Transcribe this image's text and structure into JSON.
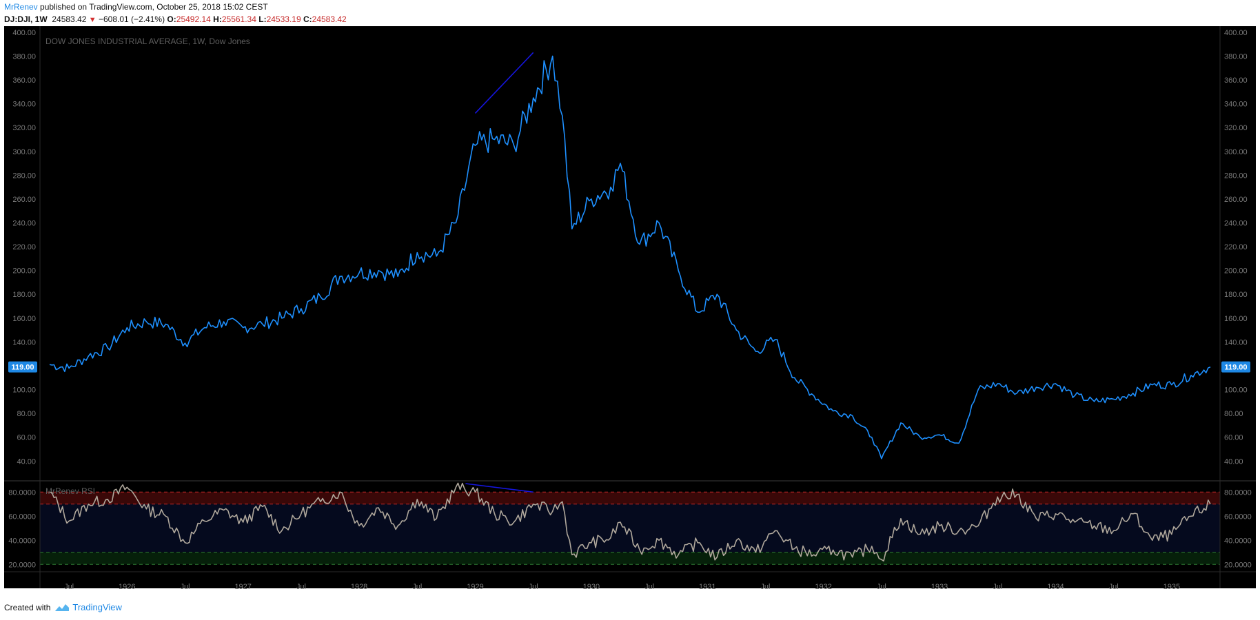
{
  "header": {
    "author": "MrRenev",
    "published_text": "published on TradingView.com, October 25, 2018 15:02 CEST",
    "symbol": "DJ:DJI, 1W",
    "last": "24583.42",
    "change": "−608.01 (−2.41%)",
    "o_label": "O:",
    "o_value": "25492.14",
    "h_label": "H:",
    "h_value": "25561.34",
    "l_label": "L:",
    "l_value": "24533.19",
    "c_label": "C:",
    "c_value": "24583.42"
  },
  "footer": {
    "created_with": "Created with",
    "brand": "TradingView"
  },
  "colors": {
    "price_line": "#1e90ff",
    "rsi_line": "#b0a89c",
    "overbought": "#c62828",
    "oversold": "#2e7d32",
    "background": "#000000",
    "divergence": "#1515e0"
  },
  "chart_data": [
    {
      "type": "line",
      "title": "DOW JONES INDUSTRIAL AVERAGE, 1W, Dow Jones",
      "series": [
        {
          "name": "",
          "x": [
            "1925-05",
            "1925-07",
            "1925-09",
            "1925-11",
            "1926-01",
            "1926-03",
            "1926-05",
            "1926-07",
            "1926-09",
            "1926-11",
            "1927-01",
            "1927-03",
            "1927-05",
            "1927-07",
            "1927-09",
            "1927-11",
            "1928-01",
            "1928-03",
            "1928-05",
            "1928-07",
            "1928-09",
            "1928-11",
            "1929-01",
            "1929-03",
            "1929-05",
            "1929-07",
            "1929-09",
            "1929-10",
            "1929-11",
            "1930-01",
            "1930-03",
            "1930-04",
            "1930-06",
            "1930-08",
            "1930-10",
            "1930-12",
            "1931-02",
            "1931-04",
            "1931-06",
            "1931-08",
            "1931-10",
            "1931-12",
            "1932-02",
            "1932-04",
            "1932-06",
            "1932-07",
            "1932-09",
            "1932-11",
            "1933-01",
            "1933-03",
            "1933-05",
            "1933-07",
            "1933-09",
            "1933-11",
            "1934-01",
            "1934-03",
            "1934-05",
            "1934-07",
            "1934-09",
            "1934-11",
            "1935-01",
            "1935-03",
            "1935-05"
          ],
          "y": [
            121,
            118,
            128,
            135,
            152,
            157,
            155,
            139,
            152,
            157,
            152,
            155,
            160,
            168,
            178,
            195,
            198,
            200,
            195,
            215,
            212,
            240,
            305,
            310,
            305,
            345,
            380,
            330,
            235,
            260,
            270,
            290,
            222,
            240,
            200,
            165,
            180,
            150,
            132,
            142,
            110,
            95,
            82,
            78,
            60,
            42,
            72,
            60,
            62,
            55,
            100,
            105,
            97,
            102,
            105,
            95,
            90,
            92,
            97,
            104,
            104,
            112,
            119
          ]
        }
      ],
      "yticks": [
        "400.00",
        "380.00",
        "360.00",
        "340.00",
        "320.00",
        "300.00",
        "280.00",
        "260.00",
        "240.00",
        "220.00",
        "200.00",
        "180.00",
        "160.00",
        "140.00",
        "120.00",
        "100.00",
        "80.00",
        "60.00",
        "40.00"
      ],
      "ylim": [
        28,
        404
      ],
      "last_value_label": "119.00",
      "grid": false
    },
    {
      "type": "line",
      "title": "MrRenev RSI",
      "series": [
        {
          "name": "",
          "x": [
            "1925-05",
            "1925-07",
            "1925-09",
            "1925-11",
            "1926-01",
            "1926-03",
            "1926-05",
            "1926-07",
            "1926-09",
            "1926-11",
            "1927-01",
            "1927-03",
            "1927-05",
            "1927-07",
            "1927-09",
            "1927-11",
            "1928-01",
            "1928-03",
            "1928-05",
            "1928-07",
            "1928-09",
            "1928-11",
            "1929-01",
            "1929-03",
            "1929-05",
            "1929-07",
            "1929-09",
            "1929-10",
            "1929-11",
            "1930-01",
            "1930-03",
            "1930-04",
            "1930-06",
            "1930-08",
            "1930-10",
            "1930-12",
            "1931-02",
            "1931-04",
            "1931-06",
            "1931-08",
            "1931-10",
            "1931-12",
            "1932-02",
            "1932-04",
            "1932-06",
            "1932-07",
            "1932-09",
            "1932-11",
            "1933-01",
            "1933-03",
            "1933-05",
            "1933-07",
            "1933-09",
            "1933-11",
            "1934-01",
            "1934-03",
            "1934-05",
            "1934-07",
            "1934-09",
            "1934-11",
            "1935-01",
            "1935-03",
            "1935-05"
          ],
          "y": [
            80,
            56,
            70,
            74,
            84,
            66,
            60,
            38,
            56,
            65,
            55,
            68,
            48,
            62,
            72,
            80,
            52,
            67,
            52,
            74,
            58,
            84,
            80,
            62,
            55,
            70,
            64,
            72,
            28,
            38,
            42,
            55,
            32,
            40,
            28,
            38,
            26,
            40,
            30,
            48,
            33,
            28,
            32,
            26,
            35,
            24,
            58,
            45,
            52,
            48,
            52,
            76,
            78,
            58,
            62,
            55,
            52,
            48,
            62,
            40,
            45,
            60,
            70
          ]
        }
      ],
      "yticks": [
        "80.0000",
        "60.0000",
        "40.0000",
        "20.0000"
      ],
      "ylim": [
        15,
        87
      ],
      "bands": {
        "overbought": [
          70,
          80
        ],
        "oversold": [
          20,
          30
        ]
      },
      "grid": false
    }
  ],
  "xaxis": {
    "ticks": [
      {
        "label": "Jul",
        "date": "1925-07"
      },
      {
        "label": "1926",
        "date": "1926-01"
      },
      {
        "label": "Jul",
        "date": "1926-07"
      },
      {
        "label": "1927",
        "date": "1927-01"
      },
      {
        "label": "Jul",
        "date": "1927-07"
      },
      {
        "label": "1928",
        "date": "1928-01"
      },
      {
        "label": "Jul",
        "date": "1928-07"
      },
      {
        "label": "1929",
        "date": "1929-01"
      },
      {
        "label": "Jul",
        "date": "1929-07"
      },
      {
        "label": "1930",
        "date": "1930-01"
      },
      {
        "label": "Jul",
        "date": "1930-07"
      },
      {
        "label": "1931",
        "date": "1931-01"
      },
      {
        "label": "Jul",
        "date": "1931-07"
      },
      {
        "label": "1932",
        "date": "1932-01"
      },
      {
        "label": "Jul",
        "date": "1932-07"
      },
      {
        "label": "1933",
        "date": "1933-01"
      },
      {
        "label": "Jul",
        "date": "1933-07"
      },
      {
        "label": "1934",
        "date": "1934-01"
      },
      {
        "label": "Jul",
        "date": "1934-07"
      },
      {
        "label": "1935",
        "date": "1935-01"
      }
    ],
    "range": [
      "1925-04",
      "1935-06"
    ]
  },
  "annotations": {
    "price_divergence": [
      {
        "date": "1929-01",
        "value": 332
      },
      {
        "date": "1929-07",
        "value": 383
      }
    ],
    "rsi_divergence": [
      {
        "date": "1928-12",
        "value": 87
      },
      {
        "date": "1929-07",
        "value": 80
      }
    ]
  }
}
